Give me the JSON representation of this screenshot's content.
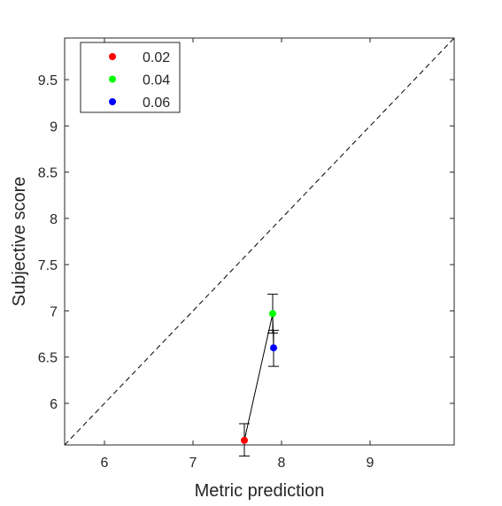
{
  "chart_data": {
    "type": "scatter",
    "title": "",
    "xlabel": "Metric prediction",
    "ylabel": "Subjective score",
    "xlim": [
      5.55,
      9.95
    ],
    "ylim": [
      5.55,
      9.95
    ],
    "x_ticks": [
      6,
      7,
      8,
      9
    ],
    "y_ticks": [
      6,
      6.5,
      7,
      7.5,
      8,
      8.5,
      9,
      9.5
    ],
    "x_tick_labels": [
      "6",
      "7",
      "8",
      "9"
    ],
    "y_tick_labels": [
      "6",
      "6.5",
      "7",
      "7.5",
      "8",
      "8.5",
      "9",
      "9.5"
    ],
    "grid": false,
    "legend_position": "top-left",
    "reference_line": {
      "style": "dashed",
      "from": [
        5.55,
        5.55
      ],
      "to": [
        9.95,
        9.95
      ],
      "color": "#000000"
    },
    "connecting_line": {
      "color": "#000000",
      "order": [
        "0.02",
        "0.04",
        "0.06"
      ]
    },
    "series": [
      {
        "name": "0.02",
        "color": "#ff0000",
        "x": 7.58,
        "y": 5.6,
        "error_low": 5.43,
        "error_high": 5.78
      },
      {
        "name": "0.04",
        "color": "#00ff00",
        "x": 7.9,
        "y": 6.97,
        "error_low": 6.76,
        "error_high": 7.18
      },
      {
        "name": "0.06",
        "color": "#0000ff",
        "x": 7.91,
        "y": 6.6,
        "error_low": 6.4,
        "error_high": 6.79
      }
    ]
  }
}
